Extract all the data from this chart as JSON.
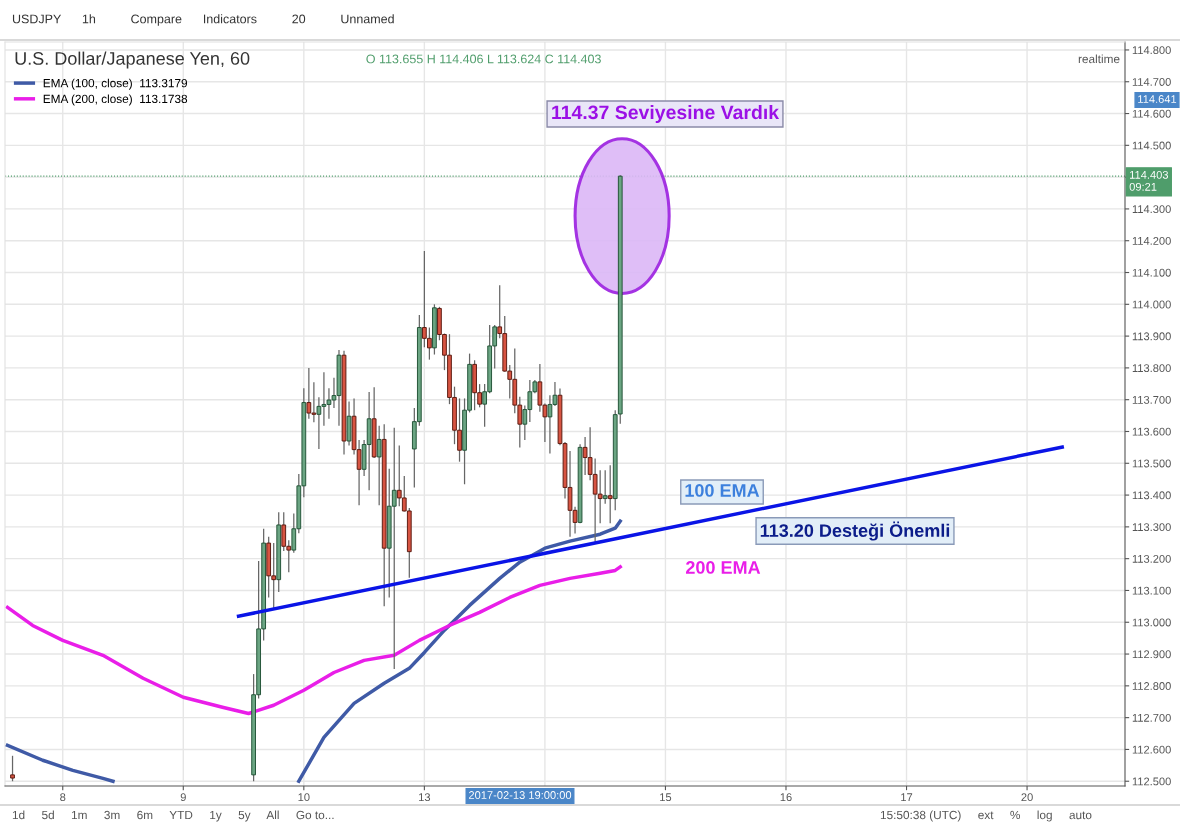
{
  "chart_data": {
    "type": "candlestick",
    "title": "U.S. Dollar/Japanese Yen, 60",
    "subtitle": "O 113.655 H 114.406 L 113.624 C 114.403",
    "categories": [
      null,
      null,
      null,
      null,
      null,
      null,
      null,
      null,
      null,
      null,
      null,
      "8",
      null,
      null,
      null,
      null,
      null,
      null,
      null,
      null,
      null,
      null,
      null,
      null,
      null,
      null,
      null,
      null,
      null,
      null,
      null,
      null,
      null,
      null,
      null,
      "9",
      null,
      null,
      null,
      null,
      null,
      null,
      null,
      null,
      null,
      null,
      null,
      null,
      null,
      null,
      null,
      null,
      null,
      null,
      null,
      null,
      null,
      null,
      null,
      "10",
      null,
      null,
      null,
      null,
      null,
      null,
      null,
      null,
      null,
      null,
      null,
      null,
      null,
      null,
      null,
      null,
      null,
      null,
      null,
      null,
      null,
      null,
      null,
      "13",
      null,
      null,
      null,
      null,
      null,
      null,
      null,
      null,
      null,
      null,
      null,
      null,
      null,
      null,
      null,
      null,
      null,
      null,
      null,
      null,
      null,
      null,
      null,
      null,
      null,
      null,
      null,
      null,
      null,
      null,
      null,
      null,
      null,
      null,
      null,
      null,
      null,
      null,
      null,
      null,
      null,
      null,
      null,
      null,
      null,
      null,
      null,
      "15",
      null,
      null,
      null,
      null,
      null,
      null,
      null,
      null,
      null,
      null,
      null,
      null,
      null,
      null,
      null,
      null,
      null,
      null,
      null,
      null,
      null,
      null,
      null,
      "16",
      null,
      null,
      null,
      null,
      null,
      null,
      null,
      null,
      null,
      null,
      null,
      null,
      null,
      null,
      null,
      null,
      null,
      null,
      null,
      null,
      null,
      null,
      null,
      "17",
      null,
      null,
      null,
      null,
      null,
      null,
      null,
      null,
      null,
      null,
      null,
      null,
      null,
      null,
      null,
      null,
      null,
      null,
      null,
      null,
      null,
      null,
      null,
      "20",
      null,
      null,
      null,
      null,
      null,
      null,
      null,
      null,
      null,
      null,
      null,
      null,
      null,
      null,
      null,
      null,
      null,
      null,
      null
    ],
    "ohlc": [
      null,
      [
        112.52,
        112.58,
        112.5,
        112.51
      ],
      null,
      null,
      null,
      null,
      null,
      null,
      null,
      null,
      null,
      null,
      null,
      null,
      null,
      null,
      null,
      null,
      null,
      null,
      null,
      null,
      null,
      null,
      null,
      null,
      null,
      null,
      null,
      null,
      null,
      null,
      null,
      null,
      null,
      null,
      null,
      null,
      null,
      null,
      null,
      null,
      null,
      null,
      null,
      null,
      null,
      null,
      null,
      [
        112.52,
        112.837,
        112.5,
        112.772
      ],
      [
        112.772,
        113.193,
        112.76,
        112.979
      ],
      [
        112.979,
        113.294,
        112.943,
        113.249
      ],
      [
        113.249,
        113.269,
        113.078,
        113.146
      ],
      [
        113.146,
        113.249,
        113.044,
        113.134
      ],
      [
        113.134,
        113.346,
        113.095,
        113.306
      ],
      [
        113.306,
        113.346,
        113.224,
        113.239
      ],
      [
        113.239,
        113.258,
        113.157,
        113.227
      ],
      [
        113.227,
        113.342,
        113.219,
        113.294
      ],
      [
        113.294,
        113.466,
        113.28,
        113.429
      ],
      [
        113.429,
        113.736,
        113.393,
        113.691
      ],
      [
        113.691,
        113.8,
        113.64,
        113.658
      ],
      [
        113.658,
        113.755,
        113.629,
        113.654
      ],
      [
        113.654,
        113.708,
        113.545,
        113.679
      ],
      [
        113.679,
        113.786,
        113.618,
        113.685
      ],
      [
        113.685,
        113.736,
        113.64,
        113.699
      ],
      [
        113.699,
        113.769,
        113.674,
        113.713
      ],
      [
        113.713,
        113.856,
        113.618,
        113.84
      ],
      [
        113.84,
        113.854,
        113.528,
        113.57
      ],
      [
        113.57,
        113.694,
        113.556,
        113.648
      ],
      [
        113.648,
        113.704,
        113.528,
        113.543
      ],
      [
        113.543,
        113.573,
        113.368,
        113.481
      ],
      [
        113.481,
        113.573,
        113.46,
        113.559
      ],
      [
        113.559,
        113.724,
        113.415,
        113.64
      ],
      [
        113.64,
        113.739,
        113.517,
        113.52
      ],
      [
        113.52,
        113.618,
        113.368,
        113.575
      ],
      [
        113.575,
        113.623,
        113.05,
        113.233
      ],
      [
        113.233,
        113.483,
        113.078,
        113.365
      ],
      [
        113.365,
        113.612,
        112.853,
        113.415
      ],
      [
        113.415,
        113.556,
        113.365,
        113.391
      ],
      [
        113.391,
        113.46,
        113.348,
        113.35
      ],
      [
        113.35,
        113.359,
        113.14,
        113.222
      ],
      [
        113.545,
        113.674,
        113.424,
        113.631
      ],
      [
        113.631,
        113.966,
        113.618,
        113.927
      ],
      [
        113.927,
        114.168,
        113.865,
        113.893
      ],
      [
        113.893,
        113.927,
        113.826,
        113.863
      ],
      [
        113.863,
        114.0,
        113.842,
        113.989
      ],
      [
        113.987,
        113.992,
        113.887,
        113.905
      ],
      [
        113.905,
        113.908,
        113.793,
        113.84
      ],
      [
        113.84,
        113.906,
        113.686,
        113.707
      ],
      [
        113.707,
        113.741,
        113.56,
        113.604
      ],
      [
        113.604,
        113.704,
        113.505,
        113.541
      ],
      [
        113.541,
        113.704,
        113.434,
        113.667
      ],
      [
        113.667,
        113.845,
        113.66,
        113.811
      ],
      [
        113.811,
        113.824,
        113.667,
        113.722
      ],
      [
        113.722,
        113.749,
        113.676,
        113.686
      ],
      [
        113.686,
        113.749,
        113.615,
        113.725
      ],
      [
        113.725,
        113.935,
        113.72,
        113.869
      ],
      [
        113.869,
        113.935,
        113.798,
        113.929
      ],
      [
        113.929,
        114.06,
        113.893,
        113.908
      ],
      [
        113.908,
        113.963,
        113.788,
        113.79
      ],
      [
        113.79,
        113.809,
        113.704,
        113.764
      ],
      [
        113.764,
        113.861,
        113.657,
        113.683
      ],
      [
        113.683,
        113.709,
        113.55,
        113.623
      ],
      [
        113.623,
        113.682,
        113.573,
        113.669
      ],
      [
        113.669,
        113.762,
        113.63,
        113.725
      ],
      [
        113.725,
        113.762,
        113.72,
        113.756
      ],
      [
        113.756,
        113.812,
        113.662,
        113.683
      ],
      [
        113.683,
        113.688,
        113.567,
        113.646
      ],
      [
        113.646,
        113.714,
        113.531,
        113.685
      ],
      [
        113.685,
        113.756,
        113.68,
        113.714
      ],
      [
        113.714,
        113.735,
        113.557,
        113.562
      ],
      [
        113.562,
        113.567,
        113.389,
        113.424
      ],
      [
        113.424,
        113.539,
        113.269,
        113.352
      ],
      [
        113.352,
        113.363,
        113.279,
        113.314
      ],
      [
        113.314,
        113.56,
        113.311,
        113.55
      ],
      [
        113.55,
        113.583,
        113.463,
        113.518
      ],
      [
        113.518,
        113.613,
        113.447,
        113.465
      ],
      [
        113.465,
        113.515,
        113.253,
        113.403
      ],
      [
        113.403,
        113.478,
        113.311,
        113.389
      ],
      [
        113.389,
        113.478,
        113.373,
        113.398
      ],
      [
        113.398,
        113.494,
        113.311,
        113.389
      ],
      [
        113.389,
        113.667,
        113.352,
        113.653
      ],
      [
        113.655,
        114.406,
        113.624,
        114.403
      ],
      null,
      null,
      null,
      null,
      null,
      null,
      null,
      null,
      null,
      null,
      null,
      null,
      null,
      null,
      null,
      null,
      null,
      null,
      null,
      null,
      null,
      null,
      null,
      null,
      null,
      null,
      null,
      null,
      null,
      null,
      null,
      null,
      null,
      null,
      null,
      null,
      null,
      null,
      null,
      null,
      null,
      null,
      null,
      null,
      null,
      null,
      null,
      null,
      null,
      null,
      null,
      null,
      null,
      null,
      null,
      null,
      null,
      null,
      null,
      null,
      null,
      null,
      null,
      null,
      null,
      null,
      null,
      null,
      null,
      null,
      null,
      null,
      null,
      null,
      null,
      null,
      null,
      null,
      null,
      null,
      null,
      null,
      null,
      null,
      null,
      null,
      null,
      null,
      null,
      null,
      null,
      null,
      null,
      null,
      null,
      null,
      null,
      null,
      null,
      null
    ],
    "series": [
      {
        "type": "line",
        "color": "#3f5aa6",
        "values": [
          112.613,
          null,
          null,
          null,
          null,
          null,
          null,
          112.566,
          null,
          null,
          null,
          null,
          null,
          112.534,
          null,
          null,
          null,
          null,
          null,
          112.509,
          null,
          112.5,
          null,
          null,
          null,
          null,
          null,
          null,
          null,
          null,
          null,
          null,
          null,
          null,
          null,
          null,
          null,
          null,
          null,
          null,
          null,
          null,
          null,
          null,
          null,
          null,
          null,
          null,
          null,
          null,
          null,
          null,
          null,
          null,
          null,
          null,
          null,
          null,
          null,
          null,
          null,
          null,
          null,
          null,
          null,
          null,
          null,
          null,
          null,
          null,
          null,
          null,
          null,
          null,
          null,
          null,
          null,
          null,
          null,
          null,
          null,
          null,
          null,
          null,
          null,
          null,
          null,
          null,
          null,
          null,
          null,
          null,
          null,
          null,
          null,
          null,
          null,
          null,
          null,
          null,
          null,
          null,
          null,
          null,
          null,
          null,
          null,
          null,
          null,
          null,
          null,
          null,
          null,
          null,
          null,
          null,
          null,
          null,
          null,
          null,
          null,
          null,
          null,
          null,
          null,
          null,
          null,
          null,
          null,
          null,
          null,
          null,
          null,
          null,
          null,
          null,
          null,
          null,
          null,
          null,
          null,
          null,
          null,
          null,
          null,
          null,
          null,
          null,
          null,
          null,
          null,
          null,
          null,
          null,
          null,
          null,
          null,
          null,
          null,
          null,
          null,
          null,
          null,
          null,
          null,
          null,
          null,
          null,
          null,
          null,
          null,
          null,
          null,
          null,
          null,
          null,
          null,
          null,
          null,
          null,
          null,
          null,
          null,
          null,
          null,
          null,
          null,
          null,
          null,
          null,
          null,
          null,
          null,
          null,
          null,
          null,
          null,
          null,
          null,
          null,
          null,
          null,
          null,
          null,
          null,
          null,
          null,
          null,
          null,
          null,
          null,
          null,
          null,
          null,
          null,
          null,
          null,
          null,
          null,
          null,
          null,
          null,
          null
        ]
      },
      {
        "name": "EMA (100, close)  113.3179",
        "type": "line",
        "color": "#3f5aa6",
        "values": [
          null,
          null,
          null,
          null,
          null,
          null,
          null,
          null,
          null,
          null,
          null,
          null,
          null,
          null,
          null,
          null,
          null,
          null,
          null,
          null,
          null,
          null,
          null,
          null,
          null,
          null,
          null,
          null,
          null,
          null,
          null,
          null,
          null,
          null,
          null,
          null,
          null,
          null,
          null,
          null,
          null,
          null,
          null,
          null,
          null,
          null,
          null,
          null,
          null,
          null,
          null,
          null,
          null,
          null,
          null,
          null,
          null,
          null,
          112.5,
          null,
          null,
          null,
          null,
          112.638,
          null,
          null,
          null,
          null,
          null,
          112.745,
          null,
          null,
          null,
          null,
          null,
          112.808,
          null,
          null,
          null,
          null,
          112.855,
          null,
          null,
          112.905,
          null,
          null,
          null,
          112.975,
          null,
          null,
          null,
          null,
          113.053,
          null,
          null,
          null,
          null,
          null,
          113.138,
          null,
          null,
          null,
          113.189,
          null,
          null,
          null,
          null,
          113.233,
          null,
          null,
          null,
          null,
          113.255,
          null,
          null,
          null,
          null,
          null,
          113.277,
          null,
          null,
          113.296,
          113.318,
          null,
          null,
          null,
          null,
          null,
          null,
          null,
          null,
          null,
          null,
          null,
          null,
          null,
          null,
          null,
          null,
          null,
          null,
          null,
          null,
          null,
          null,
          null,
          null,
          null,
          null,
          null,
          null,
          null,
          null,
          null,
          null,
          null,
          null,
          null,
          null,
          null,
          null,
          null,
          null,
          null,
          null,
          null,
          null,
          null,
          null,
          null,
          null,
          null,
          null,
          null,
          null,
          null,
          null,
          null,
          null,
          null,
          null,
          null,
          null,
          null,
          null,
          null,
          null,
          null,
          null,
          null,
          null,
          null,
          null,
          null,
          null,
          null,
          null,
          null,
          null,
          null,
          null,
          null,
          null,
          null,
          null,
          null,
          null,
          null,
          null,
          null,
          null,
          null,
          null,
          null,
          null,
          null,
          null,
          null,
          null,
          null,
          null,
          null,
          null
        ]
      },
      {
        "name": "EMA (200, close)  113.1738",
        "type": "line",
        "color": "#e91ee8",
        "values": [
          113.047,
          null,
          null,
          null,
          null,
          112.99,
          null,
          null,
          null,
          null,
          null,
          112.943,
          null,
          null,
          null,
          null,
          null,
          null,
          null,
          112.896,
          null,
          null,
          null,
          null,
          null,
          null,
          null,
          112.824,
          null,
          null,
          null,
          null,
          null,
          null,
          null,
          112.764,
          null,
          null,
          null,
          null,
          null,
          null,
          null,
          112.732,
          null,
          null,
          null,
          null,
          112.713,
          null,
          null,
          null,
          null,
          112.739,
          null,
          null,
          null,
          null,
          null,
          112.786,
          null,
          null,
          null,
          null,
          null,
          112.842,
          null,
          null,
          null,
          null,
          null,
          112.88,
          null,
          null,
          null,
          null,
          null,
          112.896,
          null,
          null,
          null,
          null,
          112.943,
          null,
          null,
          null,
          null,
          null,
          112.99,
          null,
          null,
          null,
          null,
          null,
          113.031,
          null,
          null,
          null,
          null,
          null,
          113.078,
          null,
          null,
          null,
          null,
          null,
          113.116,
          null,
          null,
          null,
          null,
          null,
          113.138,
          null,
          null,
          null,
          null,
          null,
          113.154,
          null,
          null,
          113.163,
          113.174,
          null,
          null,
          null,
          null,
          null,
          null,
          null,
          null,
          null,
          null,
          null,
          null,
          null,
          null,
          null,
          null,
          null,
          null,
          null,
          null,
          null,
          null,
          null,
          null,
          null,
          null,
          null,
          null,
          null,
          null,
          null,
          null,
          null,
          null,
          null,
          null,
          null,
          null,
          null,
          null,
          null,
          null,
          null,
          null,
          null,
          null,
          null,
          null,
          null,
          null,
          null,
          null,
          null,
          null,
          null,
          null,
          null,
          null,
          null,
          null,
          null,
          null,
          null,
          null,
          null,
          null,
          null,
          null,
          null,
          null,
          null,
          null,
          null,
          null,
          null,
          null,
          null,
          null,
          null,
          null,
          null,
          null,
          null,
          null,
          null,
          null,
          null,
          null,
          null,
          null,
          null,
          null,
          null,
          null,
          null,
          null,
          null,
          null,
          null,
          null
        ]
      },
      {
        "type": "line",
        "color": "#0a14e6",
        "values": [
          null,
          null,
          null,
          null,
          null,
          null,
          null,
          null,
          null,
          null,
          null,
          null,
          null,
          null,
          null,
          null,
          null,
          null,
          null,
          null,
          null,
          null,
          null,
          null,
          null,
          null,
          null,
          null,
          null,
          null,
          null,
          null,
          null,
          null,
          null,
          null,
          null,
          null,
          null,
          null,
          null,
          null,
          null,
          null,
          null,
          null,
          113.019,
          null,
          null,
          null,
          null,
          null,
          null,
          null,
          null,
          null,
          null,
          null,
          null,
          null,
          null,
          null,
          null,
          null,
          null,
          null,
          null,
          null,
          null,
          null,
          null,
          null,
          null,
          null,
          null,
          null,
          null,
          null,
          null,
          null,
          null,
          null,
          null,
          null,
          null,
          null,
          null,
          null,
          null,
          null,
          null,
          null,
          null,
          null,
          null,
          null,
          null,
          null,
          null,
          null,
          null,
          null,
          null,
          null,
          null,
          null,
          null,
          null,
          null,
          null,
          null,
          null,
          null,
          null,
          null,
          null,
          null,
          null,
          null,
          null,
          null,
          null,
          null,
          null,
          null,
          null,
          null,
          null,
          null,
          null,
          null,
          null,
          null,
          null,
          null,
          null,
          null,
          null,
          null,
          null,
          null,
          null,
          null,
          null,
          null,
          null,
          null,
          null,
          null,
          null,
          null,
          null,
          null,
          null,
          null,
          null,
          null,
          null,
          null,
          null,
          null,
          null,
          null,
          null,
          null,
          null,
          null,
          null,
          null,
          null,
          null,
          null,
          null,
          null,
          null,
          null,
          null,
          null,
          null,
          null,
          null,
          null,
          null,
          null,
          null,
          null,
          null,
          null,
          null,
          null,
          null,
          null,
          null,
          null,
          null,
          null,
          null,
          null,
          null,
          null,
          null,
          null,
          null,
          null,
          null,
          null,
          null,
          null,
          null,
          null,
          113.551,
          null,
          null,
          null,
          null,
          null,
          null,
          null,
          null,
          null,
          null,
          null,
          null
        ]
      }
    ],
    "ylim": [
      112.485,
      114.825
    ],
    "yticks": [
      {
        "value": 112.5,
        "label": "112.500"
      },
      {
        "value": 112.6,
        "label": "112.600"
      },
      {
        "value": 112.7,
        "label": "112.700"
      },
      {
        "value": 112.8,
        "label": "112.800"
      },
      {
        "value": 112.9,
        "label": "112.900"
      },
      {
        "value": 113.0,
        "label": "113.000"
      },
      {
        "value": 113.1,
        "label": "113.100"
      },
      {
        "value": 113.2,
        "label": "113.200"
      },
      {
        "value": 113.3,
        "label": "113.300"
      },
      {
        "value": 113.4,
        "label": "113.400"
      },
      {
        "value": 113.5,
        "label": "113.500"
      },
      {
        "value": 113.6,
        "label": "113.600"
      },
      {
        "value": 113.7,
        "label": "113.700"
      },
      {
        "value": 113.8,
        "label": "113.800"
      },
      {
        "value": 113.9,
        "label": "113.900"
      },
      {
        "value": 114.0,
        "label": "114.000"
      },
      {
        "value": 114.1,
        "label": "114.100"
      },
      {
        "value": 114.2,
        "label": "114.200"
      },
      {
        "value": 114.3,
        "label": "114.300"
      },
      {
        "value": 114.4,
        "label": null
      },
      {
        "value": 114.5,
        "label": "114.500"
      },
      {
        "value": 114.6,
        "label": "114.600"
      },
      {
        "value": 114.7,
        "label": "114.700"
      },
      {
        "value": 114.8,
        "label": "114.800"
      }
    ],
    "ref_lines": [
      {
        "axis": "y",
        "value": 114.403,
        "label": "114.403\n09:21",
        "color": "#4f9d6b",
        "line_style": "dotted"
      }
    ],
    "annotations": [
      "114.37 Seviyesine Vardık",
      "100 EMA",
      "113.20 Desteği Önemli",
      "200 EMA",
      "2017-02-13 19:00:00",
      "114.641",
      "USDJPY      1h          Compare      Indicators          20          Unnamed",
      "1d     5d     1m     3m     6m     YTD     1y     5y     All     Go to...",
      "15:50:38 (UTC)     ext     %     log     auto",
      "realtime"
    ],
    "grid": true,
    "legend": "top left"
  }
}
